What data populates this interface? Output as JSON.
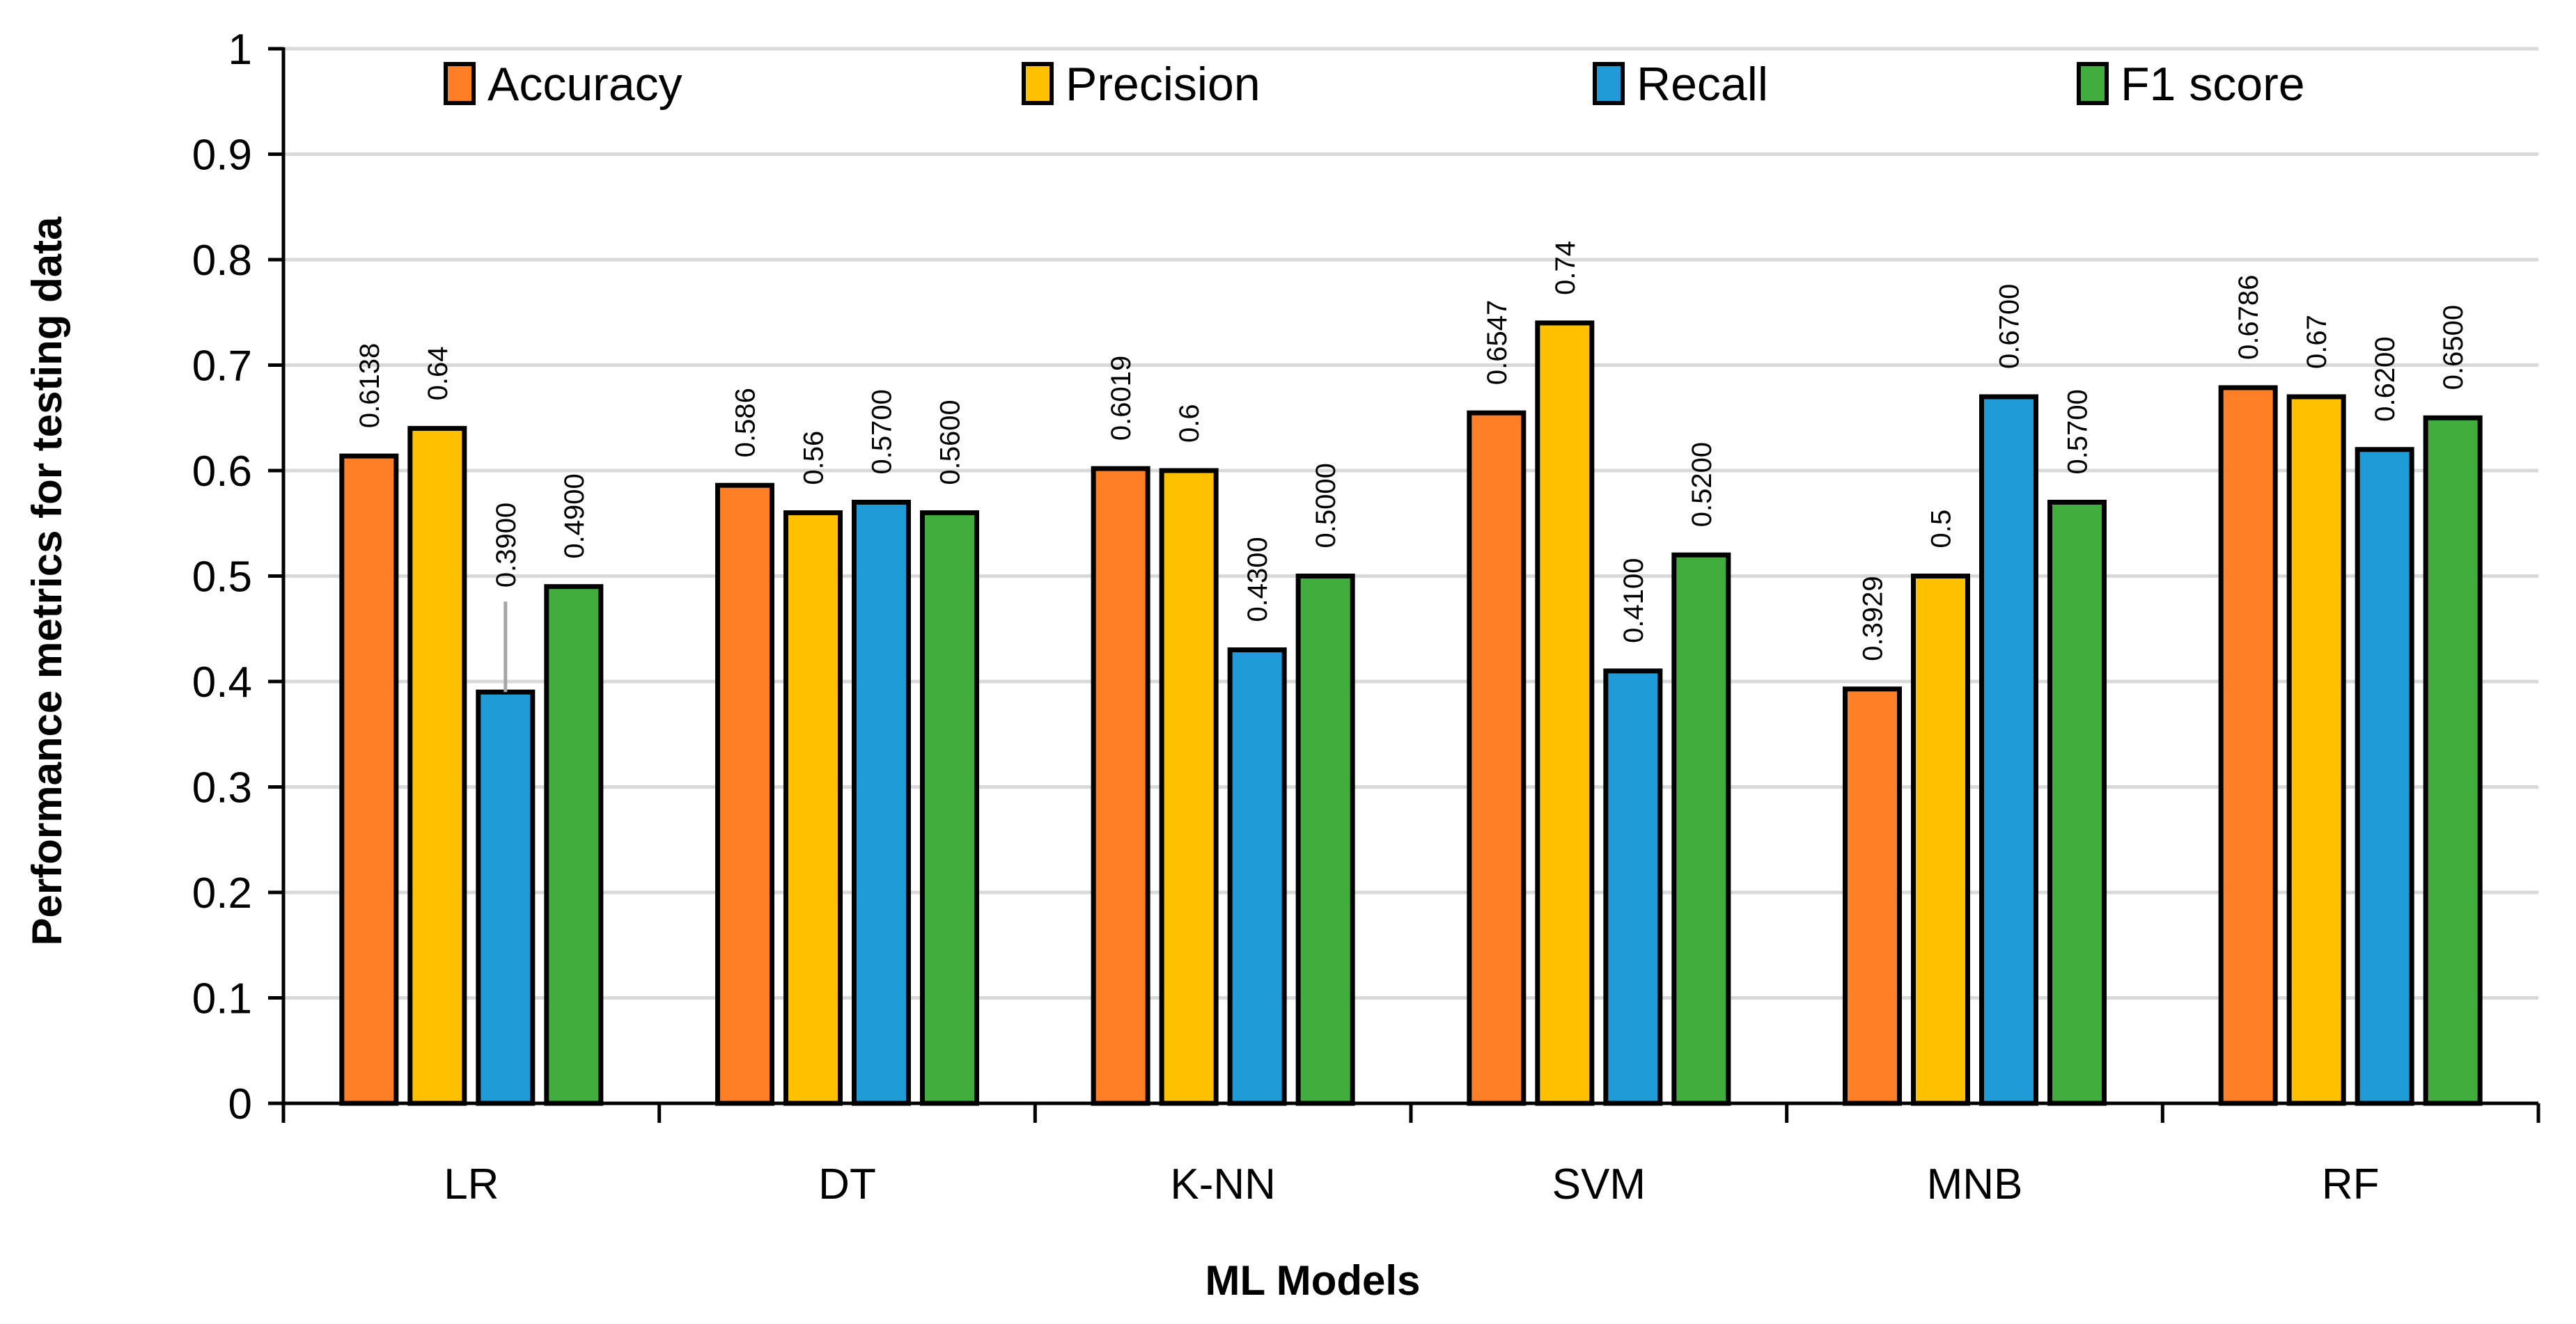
{
  "chart_data": {
    "type": "bar",
    "title": "",
    "xlabel": "ML Models",
    "ylabel": "Performance metrics for testing data",
    "ylim": [
      0,
      1
    ],
    "yticks": [
      "0",
      "0.1",
      "0.2",
      "0.3",
      "0.4",
      "0.5",
      "0.6",
      "0.7",
      "0.8",
      "0.9",
      "1"
    ],
    "grid": true,
    "legend_position": "top",
    "categories": [
      "LR",
      "DT",
      "K-NN",
      "SVM",
      "MNB",
      "RF"
    ],
    "series": [
      {
        "name": "Accuracy",
        "color": "#FF7F27",
        "values": [
          0.6138,
          0.586,
          0.6019,
          0.6547,
          0.3929,
          0.6786
        ],
        "labels": [
          "0.6138",
          "0.586",
          "0.6019",
          "0.6547",
          "0.3929",
          "0.6786"
        ]
      },
      {
        "name": "Precision",
        "color": "#FFC000",
        "values": [
          0.64,
          0.56,
          0.6,
          0.74,
          0.5,
          0.67
        ],
        "labels": [
          "0.64",
          "0.56",
          "0.6",
          "0.74",
          "0.5",
          "0.67"
        ]
      },
      {
        "name": "Recall",
        "color": "#1F9BD7",
        "values": [
          0.39,
          0.57,
          0.43,
          0.41,
          0.67,
          0.62
        ],
        "labels": [
          "0.3900",
          "0.5700",
          "0.4300",
          "0.4100",
          "0.6700",
          "0.6200"
        ]
      },
      {
        "name": "F1 score",
        "color": "#41AD3C",
        "values": [
          0.49,
          0.56,
          0.5,
          0.52,
          0.57,
          0.65
        ],
        "labels": [
          "0.4900",
          "0.5600",
          "0.5000",
          "0.5200",
          "0.5700",
          "0.6500"
        ]
      }
    ]
  }
}
